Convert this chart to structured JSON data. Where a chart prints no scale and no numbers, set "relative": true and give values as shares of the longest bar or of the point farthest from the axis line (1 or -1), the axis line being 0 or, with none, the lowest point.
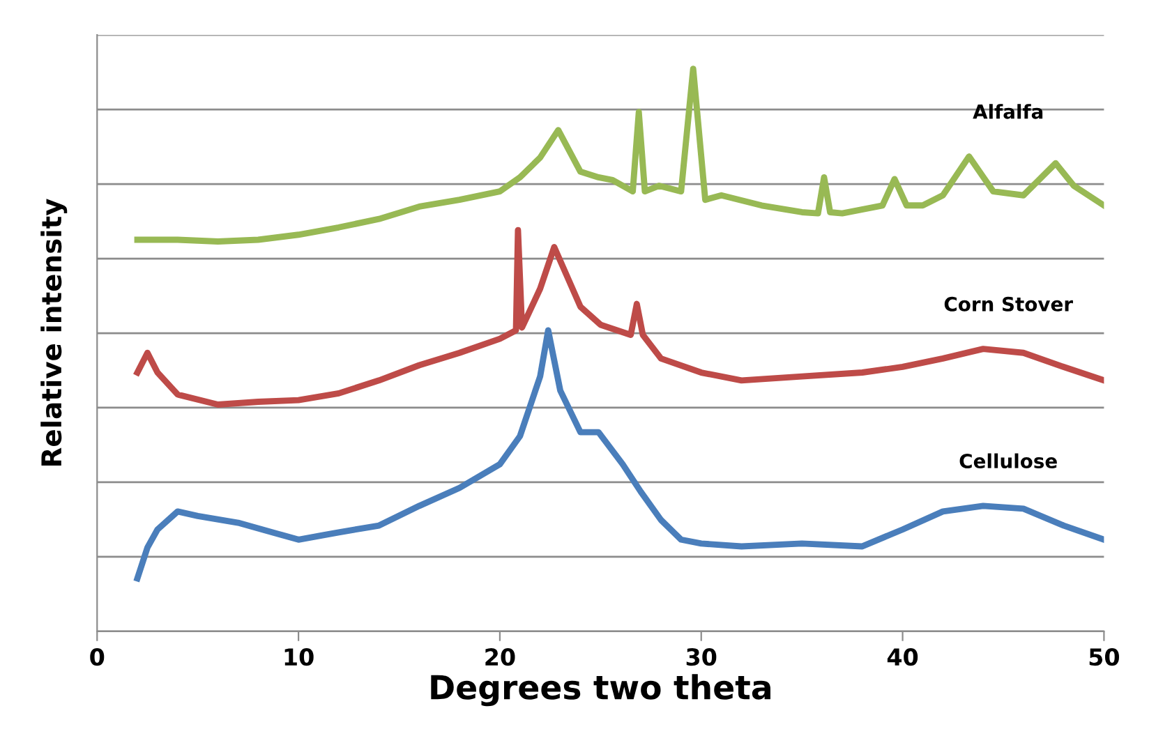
{
  "chart_data": {
    "type": "line",
    "relative": true,
    "xlabel": "Degrees two theta",
    "ylabel": "Relative intensity",
    "xlim": [
      0,
      50
    ],
    "xticks": [
      0,
      10,
      20,
      30,
      40,
      50
    ],
    "grid": "y",
    "legend": false,
    "marker": "none",
    "line_style": "solid",
    "series": [
      {
        "name": "Alfalfa",
        "color": "#98b954",
        "x": [
          2,
          4,
          6,
          8,
          10,
          12,
          14,
          16,
          18,
          20,
          21,
          22,
          22.9,
          24,
          24.9,
          25.6,
          26.6,
          26.9,
          27.2,
          27.9,
          29,
          29.6,
          30.2,
          31,
          33,
          35,
          35.8,
          36.1,
          36.4,
          37,
          39,
          39.6,
          40.2,
          41,
          42,
          43.3,
          44.5,
          46,
          47.6,
          48.5,
          50
        ],
        "values": [
          0.696,
          0.696,
          0.693,
          0.696,
          0.705,
          0.718,
          0.733,
          0.755,
          0.767,
          0.782,
          0.807,
          0.842,
          0.891,
          0.817,
          0.807,
          0.802,
          0.782,
          0.923,
          0.782,
          0.792,
          0.782,
          1.0,
          0.767,
          0.775,
          0.757,
          0.745,
          0.743,
          0.807,
          0.745,
          0.743,
          0.757,
          0.804,
          0.757,
          0.757,
          0.775,
          0.844,
          0.782,
          0.775,
          0.832,
          0.792,
          0.757
        ]
      },
      {
        "name": "Corn Stover",
        "color": "#be4b48",
        "x": [
          2,
          2.5,
          3,
          4,
          6,
          8,
          10,
          12,
          14,
          16,
          18,
          20,
          20.8,
          20.9,
          21.1,
          22,
          22.7,
          24,
          25,
          26.5,
          26.8,
          27.1,
          28,
          30,
          32,
          35,
          38,
          40,
          42,
          44,
          46,
          48,
          50
        ],
        "values": [
          0.46,
          0.495,
          0.46,
          0.421,
          0.403,
          0.408,
          0.411,
          0.423,
          0.446,
          0.473,
          0.495,
          0.52,
          0.535,
          0.713,
          0.54,
          0.609,
          0.683,
          0.577,
          0.545,
          0.527,
          0.582,
          0.527,
          0.485,
          0.46,
          0.446,
          0.453,
          0.46,
          0.47,
          0.485,
          0.502,
          0.495,
          0.47,
          0.446
        ]
      },
      {
        "name": "Cellulose",
        "color": "#4a7ebb",
        "x": [
          2,
          2.5,
          3,
          4,
          5,
          7,
          9,
          10,
          12,
          14,
          16,
          18,
          20,
          21,
          22,
          22.4,
          23,
          24,
          24.9,
          26.1,
          27,
          28,
          29,
          30,
          32,
          35,
          38,
          40,
          42,
          44,
          46,
          48,
          50
        ],
        "values": [
          0.094,
          0.149,
          0.181,
          0.213,
          0.205,
          0.193,
          0.173,
          0.163,
          0.176,
          0.188,
          0.223,
          0.255,
          0.297,
          0.347,
          0.453,
          0.535,
          0.428,
          0.354,
          0.354,
          0.297,
          0.248,
          0.198,
          0.163,
          0.156,
          0.151,
          0.156,
          0.151,
          0.181,
          0.213,
          0.223,
          0.218,
          0.188,
          0.163
        ]
      }
    ]
  }
}
